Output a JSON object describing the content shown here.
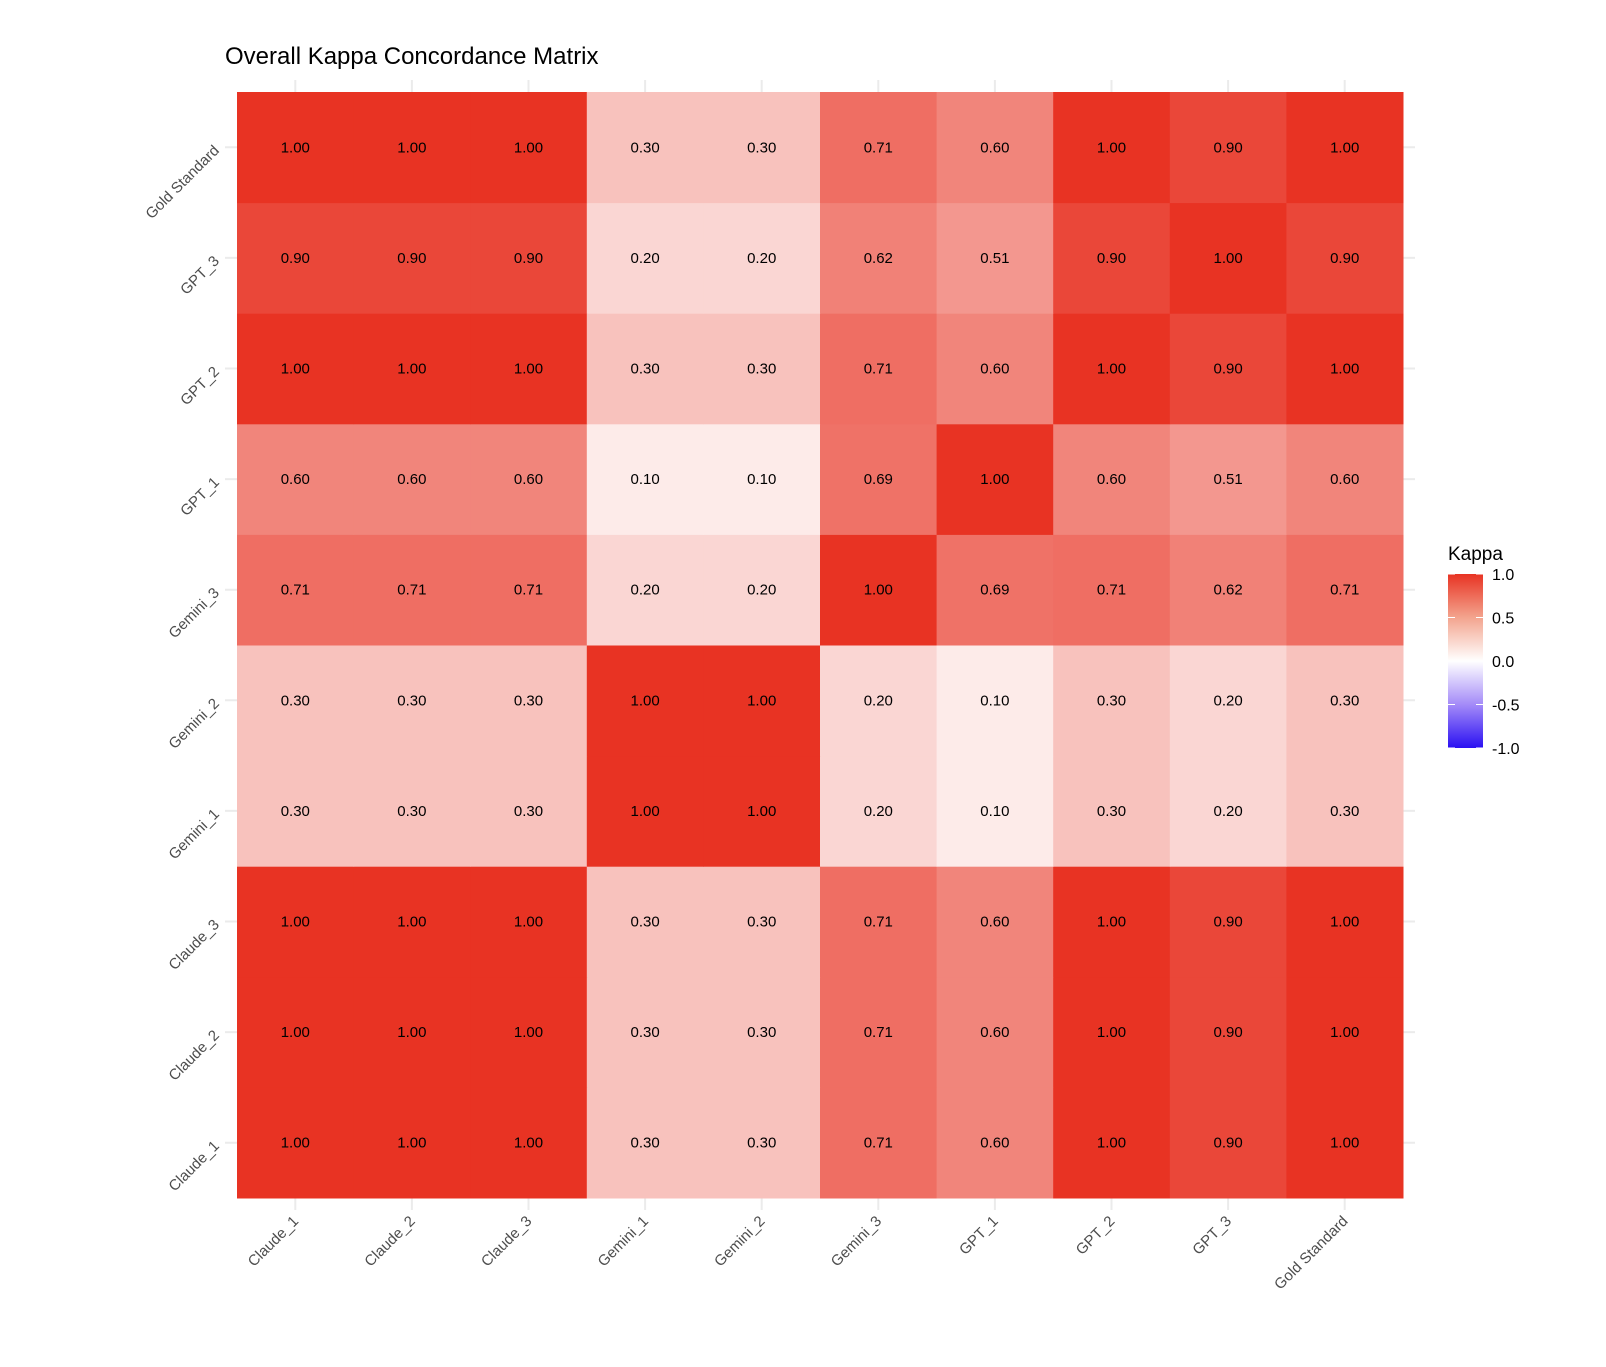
{
  "chart_data": {
    "type": "heatmap",
    "title": "Overall Kappa Concordance Matrix",
    "xlabel": "",
    "ylabel": "",
    "x_categories": [
      "Claude_1",
      "Claude_2",
      "Claude_3",
      "Gemini_1",
      "Gemini_2",
      "Gemini_3",
      "GPT_1",
      "GPT_2",
      "GPT_3",
      "Gold Standard"
    ],
    "y_categories": [
      "Claude_1",
      "Claude_2",
      "Claude_3",
      "Gemini_1",
      "Gemini_2",
      "Gemini_3",
      "GPT_1",
      "GPT_2",
      "GPT_3",
      "Gold Standard"
    ],
    "values": [
      [
        1.0,
        1.0,
        1.0,
        0.3,
        0.3,
        0.71,
        0.6,
        1.0,
        0.9,
        1.0
      ],
      [
        1.0,
        1.0,
        1.0,
        0.3,
        0.3,
        0.71,
        0.6,
        1.0,
        0.9,
        1.0
      ],
      [
        1.0,
        1.0,
        1.0,
        0.3,
        0.3,
        0.71,
        0.6,
        1.0,
        0.9,
        1.0
      ],
      [
        0.3,
        0.3,
        0.3,
        1.0,
        1.0,
        0.2,
        0.1,
        0.3,
        0.2,
        0.3
      ],
      [
        0.3,
        0.3,
        0.3,
        1.0,
        1.0,
        0.2,
        0.1,
        0.3,
        0.2,
        0.3
      ],
      [
        0.71,
        0.71,
        0.71,
        0.2,
        0.2,
        1.0,
        0.69,
        0.71,
        0.62,
        0.71
      ],
      [
        0.6,
        0.6,
        0.6,
        0.1,
        0.1,
        0.69,
        1.0,
        0.6,
        0.51,
        0.6
      ],
      [
        1.0,
        1.0,
        1.0,
        0.3,
        0.3,
        0.71,
        0.6,
        1.0,
        0.9,
        1.0
      ],
      [
        0.9,
        0.9,
        0.9,
        0.2,
        0.2,
        0.62,
        0.51,
        0.9,
        1.0,
        0.9
      ],
      [
        1.0,
        1.0,
        1.0,
        0.3,
        0.3,
        0.71,
        0.6,
        1.0,
        0.9,
        1.0
      ]
    ],
    "color_scale": {
      "low": "#2A10F2",
      "mid": "#FFFFFF",
      "high": "#E83323",
      "limits": [
        -1,
        1
      ],
      "midpoint": 0
    },
    "legend": {
      "title": "Kappa",
      "ticks": [
        "1.0",
        "0.5",
        "0.0",
        "-0.5",
        "-1.0"
      ],
      "tick_values": [
        1,
        0.5,
        0,
        -0.5,
        -1
      ],
      "placement": "right"
    },
    "grid": true
  }
}
